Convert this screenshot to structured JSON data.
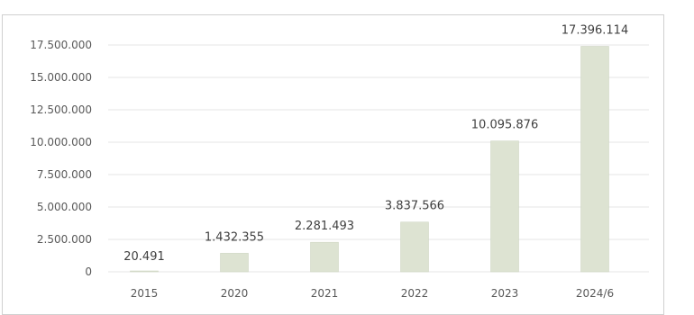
{
  "chart_data": {
    "type": "bar",
    "categories": [
      "2015",
      "2020",
      "2021",
      "2022",
      "2023",
      "2024/6"
    ],
    "values": [
      20491,
      1432355,
      2281493,
      3837566,
      10095876,
      17396114
    ],
    "data_labels": [
      "20.491",
      "1.432.355",
      "2.281.493",
      "3.837.566",
      "10.095.876",
      "17.396.114"
    ],
    "y_ticks": [
      0,
      2500000,
      5000000,
      7500000,
      10000000,
      12500000,
      15000000,
      17500000
    ],
    "y_tick_labels": [
      "0",
      "2.500.000",
      "5.000.000",
      "7.500.000",
      "10.000.000",
      "12.500.000",
      "15.000.000",
      "17.500.000"
    ],
    "ylim": [
      0,
      17500000
    ],
    "grid": true,
    "legend": "none",
    "title": "",
    "xlabel": "",
    "ylabel": "",
    "colors": {
      "bar": "#dde3d2",
      "bar_stroke": "#c9d1bd",
      "grid": "#e6e6e6",
      "axis_text": "#595959",
      "label_text": "#404040"
    }
  }
}
